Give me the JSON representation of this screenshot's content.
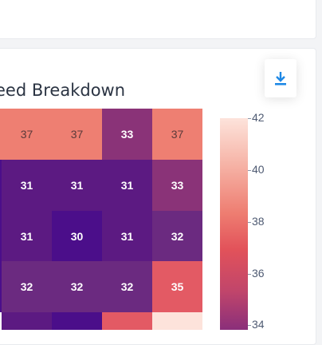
{
  "chart_data": {
    "type": "heatmap",
    "title": "eed Breakdown",
    "rows": [
      [
        37,
        37,
        33,
        37
      ],
      [
        31,
        31,
        31,
        33
      ],
      [
        31,
        30,
        31,
        32
      ],
      [
        32,
        32,
        32,
        35
      ]
    ],
    "partial_row": [
      31,
      30,
      35,
      42
    ],
    "colorbar": {
      "ticks": [
        42,
        40,
        38,
        36,
        34
      ],
      "range": [
        30,
        42
      ]
    }
  },
  "icons": {
    "download": "download-icon"
  },
  "colors": {
    "accent": "#1e88e5",
    "low": "#4b0e8a",
    "high": "#fde3db"
  }
}
